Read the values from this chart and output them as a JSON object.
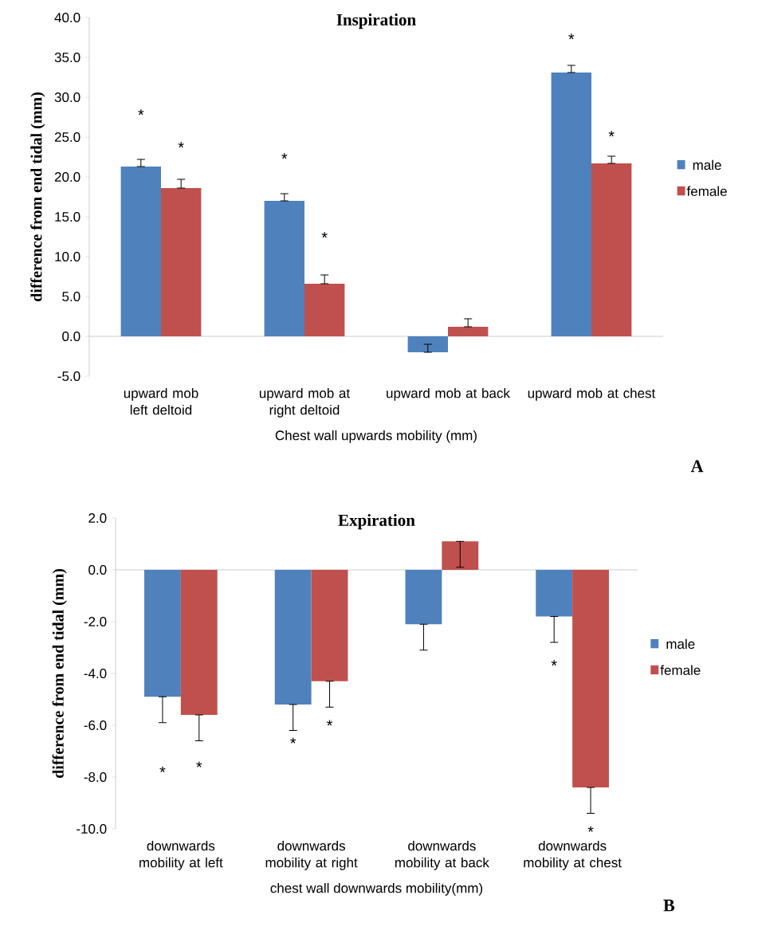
{
  "chart_data": [
    {
      "type": "bar",
      "title": "Inspiration",
      "ylabel": "difference from end tidal (mm)",
      "xlabel": "Chest wall upwards mobility (mm)",
      "categories": [
        "upward mob left deltoid",
        "upward mob at right deltoid",
        "upward mob at back",
        "upward mob at chest"
      ],
      "series": [
        {
          "name": "male",
          "color": "#4f81bd",
          "values": [
            21.3,
            17.0,
            -2.0,
            33.1
          ],
          "errors": [
            [
              21.3,
              22.2
            ],
            [
              17.0,
              17.9
            ],
            [
              -2.0,
              -1.0
            ],
            [
              33.1,
              34.0
            ]
          ]
        },
        {
          "name": "female",
          "color": "#c0504d",
          "values": [
            18.6,
            6.6,
            1.2,
            21.7
          ],
          "errors": [
            [
              18.6,
              19.7
            ],
            [
              6.6,
              7.7
            ],
            [
              1.2,
              2.2
            ],
            [
              21.7,
              22.6
            ]
          ]
        }
      ],
      "ylim": [
        -5,
        40
      ],
      "yticks": [
        {
          "value": -5,
          "label": "-5.0"
        },
        {
          "value": 0,
          "label": "0.0"
        },
        {
          "value": 5,
          "label": "5.0"
        },
        {
          "value": 10,
          "label": "10.0"
        },
        {
          "value": 15,
          "label": "15.0"
        },
        {
          "value": 20,
          "label": "20.0"
        },
        {
          "value": 25,
          "label": "25.0"
        },
        {
          "value": 30,
          "label": "30.0"
        },
        {
          "value": 35,
          "label": "35.0"
        },
        {
          "value": 40,
          "label": "40.0"
        }
      ],
      "legend": "right",
      "annotations": [
        "*",
        "*",
        "*",
        "*",
        "*",
        "*",
        "A"
      ]
    },
    {
      "type": "bar",
      "title": "Expiration",
      "ylabel": "difference from end tidal (mm)",
      "xlabel": "chest wall downwards mobility(mm)",
      "categories": [
        "downwards mobility at left",
        "downwards mobility at right",
        "downwards mobility at back",
        "downwards mobility at chest"
      ],
      "series": [
        {
          "name": "male",
          "color": "#4f81bd",
          "values": [
            -4.9,
            -5.2,
            -2.1,
            -1.8
          ],
          "errors": [
            [
              -5.9,
              -4.9
            ],
            [
              -6.2,
              -5.2
            ],
            [
              -3.1,
              -2.1
            ],
            [
              -2.8,
              -1.8
            ]
          ]
        },
        {
          "name": "female",
          "color": "#c0504d",
          "values": [
            -5.6,
            -4.3,
            1.1,
            -8.4
          ],
          "errors": [
            [
              -6.6,
              -5.6
            ],
            [
              -5.3,
              -4.3
            ],
            [
              0.1,
              1.1
            ],
            [
              -9.4,
              -8.4
            ]
          ]
        }
      ],
      "ylim": [
        -10,
        2
      ],
      "yticks": [
        {
          "value": -10,
          "label": "-10.0"
        },
        {
          "value": -8,
          "label": "-8.0"
        },
        {
          "value": -6,
          "label": "-6.0"
        },
        {
          "value": -4,
          "label": "-4.0"
        },
        {
          "value": -2,
          "label": "-2.0"
        },
        {
          "value": 0,
          "label": "0.0"
        },
        {
          "value": 2,
          "label": "2.0"
        }
      ],
      "legend": "right",
      "annotations": [
        "*",
        "*",
        "*",
        "*",
        "*",
        "*",
        "B"
      ]
    }
  ]
}
